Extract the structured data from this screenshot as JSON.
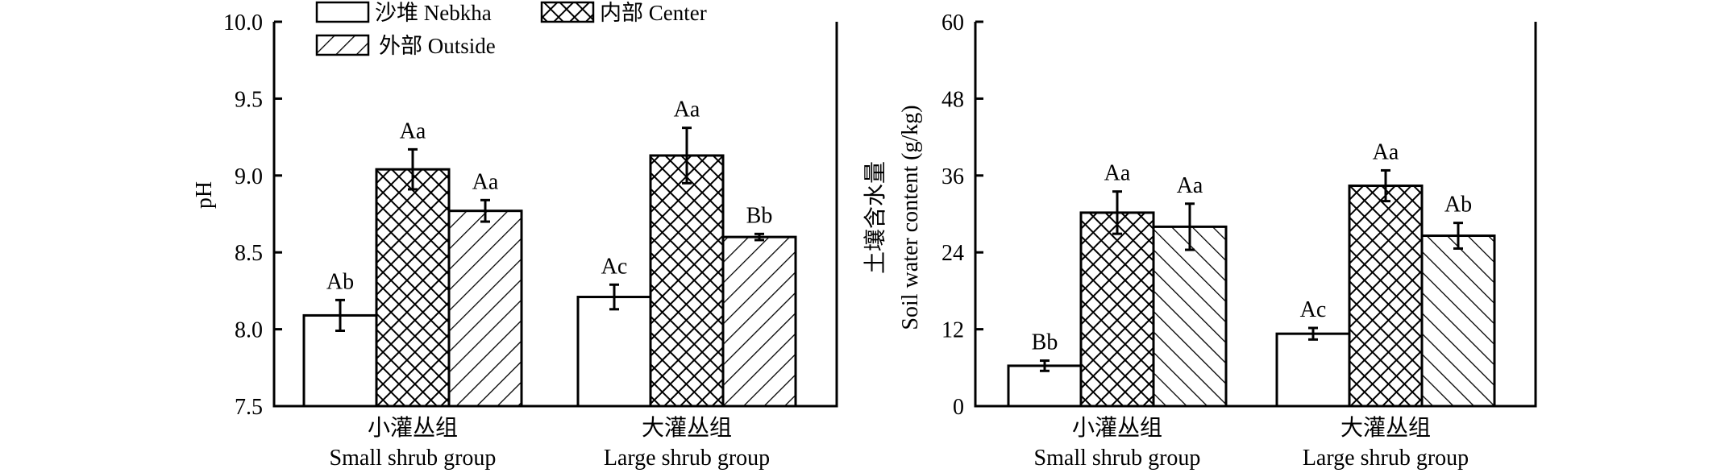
{
  "legend": {
    "items": [
      {
        "label": "沙堆 Nebkha",
        "pattern": "blank"
      },
      {
        "label": "内部 Center",
        "pattern": "crosshatch"
      },
      {
        "label": "外部 Outside",
        "pattern": "hatch"
      }
    ]
  },
  "chart_data": [
    {
      "type": "bar",
      "title": "",
      "ylabel": "pH",
      "ylim": [
        7.5,
        10.0
      ],
      "yticks": [
        "7.5",
        "8.0",
        "8.5",
        "9.0",
        "9.5",
        "10.0"
      ],
      "categories": [
        {
          "zh": "小灌丛组",
          "en": "Small shrub group"
        },
        {
          "zh": "大灌丛组",
          "en": "Large shrub group"
        }
      ],
      "series": [
        {
          "name": "沙堆 Nebkha",
          "pattern": "blank",
          "values": [
            8.09,
            8.21
          ],
          "errors": [
            0.1,
            0.08
          ],
          "labels": [
            "Ab",
            "Ac"
          ]
        },
        {
          "name": "内部 Center",
          "pattern": "crosshatch",
          "values": [
            9.04,
            9.13
          ],
          "errors": [
            0.13,
            0.18
          ],
          "labels": [
            "Aa",
            "Aa"
          ]
        },
        {
          "name": "外部 Outside",
          "pattern": "hatch",
          "values": [
            8.77,
            8.6
          ],
          "errors": [
            0.07,
            0.02
          ],
          "labels": [
            "Aa",
            "Bb"
          ]
        }
      ]
    },
    {
      "type": "bar",
      "title": "",
      "ylabel_zh": "土壤含水量",
      "ylabel": "Soil water content (g/kg)",
      "ylim": [
        0,
        60
      ],
      "yticks": [
        "0",
        "12",
        "24",
        "36",
        "48",
        "60"
      ],
      "categories": [
        {
          "zh": "小灌丛组",
          "en": "Small shrub group"
        },
        {
          "zh": "大灌丛组",
          "en": "Large shrub group"
        }
      ],
      "series": [
        {
          "name": "沙堆 Nebkha",
          "pattern": "blank",
          "values": [
            6.3,
            11.3
          ],
          "errors": [
            0.8,
            0.9
          ],
          "labels": [
            "Bb",
            "Ac"
          ]
        },
        {
          "name": "内部 Center",
          "pattern": "crosshatch",
          "values": [
            30.2,
            34.4
          ],
          "errors": [
            3.3,
            2.4
          ],
          "labels": [
            "Aa",
            "Aa"
          ]
        },
        {
          "name": "外部 Outside",
          "pattern": "hatch",
          "values": [
            28.0,
            26.6
          ],
          "errors": [
            3.6,
            2.0
          ],
          "labels": [
            "Aa",
            "Ab"
          ]
        }
      ]
    }
  ]
}
